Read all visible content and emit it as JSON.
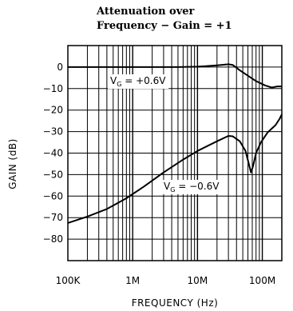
{
  "chart_data": {
    "type": "line",
    "title_line1": "Attenuation over",
    "title_line2": "Frequency − Gain = +1",
    "xlabel": "FREQUENCY (Hz)",
    "ylabel": "GAIN (dB)",
    "x_scale": "log",
    "xlim": [
      100000,
      200000000
    ],
    "ylim": [
      -90,
      10
    ],
    "x_ticks": [
      {
        "value": 100000,
        "label": "100K"
      },
      {
        "value": 1000000,
        "label": "1M"
      },
      {
        "value": 10000000,
        "label": "10M"
      },
      {
        "value": 100000000,
        "label": "100M"
      }
    ],
    "y_ticks": [
      0,
      -10,
      -20,
      -30,
      -40,
      -50,
      -60,
      -70,
      -80
    ],
    "grid": true,
    "series": [
      {
        "name": "V_G = +0.6V",
        "annotation_main": "V",
        "annotation_sub": "G",
        "annotation_rest": " = +0.6V",
        "points": [
          [
            100000,
            0
          ],
          [
            1000000,
            0
          ],
          [
            5000000,
            0
          ],
          [
            10000000,
            0.2
          ],
          [
            20000000,
            0.8
          ],
          [
            30000000,
            1.3
          ],
          [
            35000000,
            1.0
          ],
          [
            45000000,
            -1.5
          ],
          [
            60000000,
            -4
          ],
          [
            80000000,
            -6.5
          ],
          [
            110000000,
            -8.5
          ],
          [
            140000000,
            -9.5
          ],
          [
            170000000,
            -9
          ],
          [
            200000000,
            -9
          ]
        ]
      },
      {
        "name": "V_G = −0.6V",
        "annotation_main": "V",
        "annotation_sub": "G",
        "annotation_rest": " = −0.6V",
        "points": [
          [
            100000,
            -72.5
          ],
          [
            200000,
            -69.5
          ],
          [
            400000,
            -66
          ],
          [
            800000,
            -61
          ],
          [
            1500000,
            -55.5
          ],
          [
            3000000,
            -49
          ],
          [
            6000000,
            -43
          ],
          [
            10000000,
            -39
          ],
          [
            20000000,
            -34.5
          ],
          [
            30000000,
            -32
          ],
          [
            35000000,
            -32.2
          ],
          [
            45000000,
            -34.5
          ],
          [
            55000000,
            -39
          ],
          [
            62000000,
            -45
          ],
          [
            67000000,
            -49
          ],
          [
            72000000,
            -46
          ],
          [
            80000000,
            -40
          ],
          [
            95000000,
            -35
          ],
          [
            120000000,
            -30.5
          ],
          [
            160000000,
            -27
          ],
          [
            185000000,
            -24
          ],
          [
            200000000,
            -22
          ]
        ]
      }
    ]
  }
}
